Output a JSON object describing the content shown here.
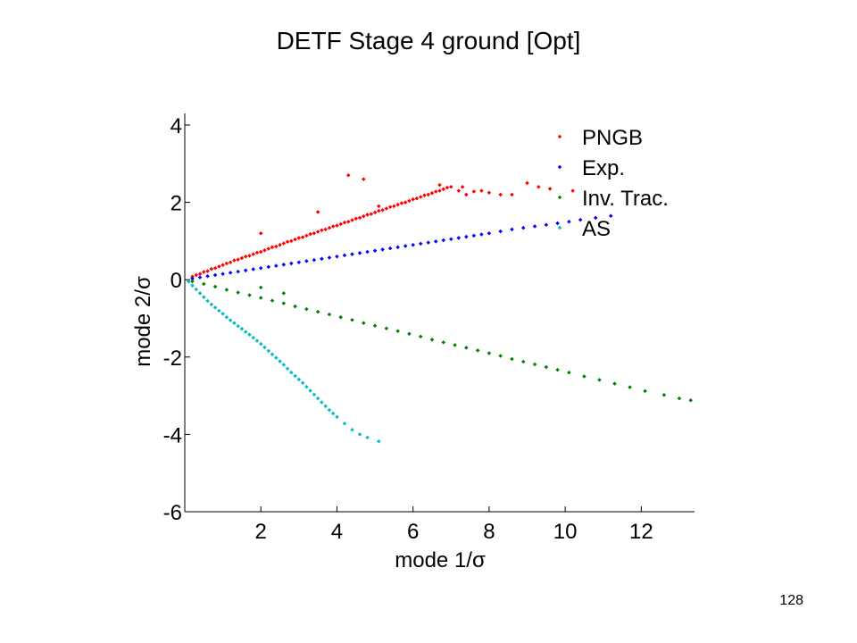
{
  "slide": {
    "title": "DETF Stage 4 ground [Opt]",
    "page_number": "128"
  },
  "chart_data": {
    "type": "scatter",
    "title": "",
    "xlabel": "mode 1/σ",
    "ylabel": "mode 2/σ",
    "xlim": [
      0,
      13.4
    ],
    "ylim": [
      -6,
      4.3
    ],
    "xticks": [
      2,
      4,
      6,
      8,
      10,
      12
    ],
    "yticks": [
      -6,
      -4,
      -2,
      0,
      2,
      4
    ],
    "grid": false,
    "legend_position": "top-right",
    "series": [
      {
        "name": "PNGB",
        "color": "#ff0000",
        "x": [
          0.2,
          0.3,
          0.4,
          0.5,
          0.6,
          0.7,
          0.8,
          0.9,
          1.0,
          1.1,
          1.2,
          1.3,
          1.4,
          1.5,
          1.6,
          1.7,
          1.8,
          1.9,
          2.0,
          2.1,
          2.2,
          2.3,
          2.4,
          2.5,
          2.6,
          2.7,
          2.8,
          2.9,
          3.0,
          3.1,
          3.2,
          3.3,
          3.4,
          3.5,
          3.6,
          3.7,
          3.8,
          3.9,
          4.0,
          4.1,
          4.2,
          4.3,
          4.4,
          4.5,
          4.6,
          4.7,
          4.8,
          4.9,
          5.0,
          5.1,
          5.2,
          5.3,
          5.4,
          5.5,
          5.6,
          5.7,
          5.8,
          5.9,
          6.0,
          6.1,
          6.2,
          6.3,
          6.4,
          6.5,
          6.6,
          6.7,
          6.8,
          6.9,
          7.0,
          7.2,
          7.4,
          7.6,
          7.8,
          8.0,
          8.3,
          8.6,
          9.0,
          9.3,
          9.6,
          10.2,
          4.3,
          4.7,
          3.5,
          2.0,
          5.1,
          6.7,
          7.3
        ],
        "y": [
          0.08,
          0.12,
          0.15,
          0.2,
          0.22,
          0.28,
          0.3,
          0.34,
          0.38,
          0.42,
          0.45,
          0.5,
          0.52,
          0.56,
          0.6,
          0.62,
          0.66,
          0.7,
          0.72,
          0.76,
          0.8,
          0.84,
          0.86,
          0.9,
          0.94,
          0.98,
          1.0,
          1.04,
          1.08,
          1.1,
          1.14,
          1.18,
          1.2,
          1.24,
          1.28,
          1.3,
          1.34,
          1.38,
          1.4,
          1.44,
          1.48,
          1.5,
          1.54,
          1.58,
          1.6,
          1.64,
          1.68,
          1.7,
          1.74,
          1.78,
          1.8,
          1.84,
          1.88,
          1.9,
          1.94,
          1.98,
          2.0,
          2.04,
          2.08,
          2.1,
          2.14,
          2.18,
          2.2,
          2.24,
          2.28,
          2.3,
          2.34,
          2.38,
          2.4,
          2.3,
          2.2,
          2.28,
          2.3,
          2.25,
          2.2,
          2.2,
          2.5,
          2.4,
          2.35,
          2.3,
          2.7,
          2.6,
          1.75,
          1.2,
          1.9,
          2.45,
          2.4
        ]
      },
      {
        "name": "Exp.",
        "color": "#0000ff",
        "x": [
          0.2,
          0.4,
          0.6,
          0.8,
          1.0,
          1.2,
          1.4,
          1.6,
          1.8,
          2.0,
          2.2,
          2.4,
          2.6,
          2.8,
          3.0,
          3.2,
          3.4,
          3.6,
          3.8,
          4.0,
          4.2,
          4.4,
          4.6,
          4.8,
          5.0,
          5.2,
          5.4,
          5.6,
          5.8,
          6.0,
          6.2,
          6.4,
          6.6,
          6.8,
          7.0,
          7.2,
          7.4,
          7.6,
          7.8,
          8.0,
          8.3,
          8.6,
          8.9,
          9.2,
          9.5,
          9.8,
          10.1,
          10.4,
          10.8,
          11.2
        ],
        "y": [
          0.03,
          0.06,
          0.09,
          0.12,
          0.15,
          0.18,
          0.21,
          0.24,
          0.27,
          0.3,
          0.33,
          0.36,
          0.39,
          0.42,
          0.45,
          0.48,
          0.51,
          0.54,
          0.57,
          0.6,
          0.63,
          0.66,
          0.69,
          0.72,
          0.75,
          0.78,
          0.81,
          0.84,
          0.87,
          0.9,
          0.93,
          0.96,
          0.99,
          1.02,
          1.05,
          1.08,
          1.11,
          1.14,
          1.17,
          1.2,
          1.25,
          1.3,
          1.34,
          1.38,
          1.42,
          1.46,
          1.5,
          1.55,
          1.6,
          1.65
        ]
      },
      {
        "name": "Inv. Trac.",
        "color": "#008000",
        "x": [
          0.2,
          0.5,
          0.8,
          1.1,
          1.4,
          1.7,
          2.0,
          2.3,
          2.6,
          2.9,
          3.2,
          3.5,
          3.8,
          4.1,
          4.4,
          4.7,
          5.0,
          5.3,
          5.6,
          5.9,
          6.2,
          6.5,
          6.8,
          7.1,
          7.4,
          7.7,
          8.0,
          8.3,
          8.6,
          8.9,
          9.2,
          9.5,
          9.8,
          10.1,
          10.5,
          10.9,
          11.3,
          11.7,
          12.1,
          12.6,
          13.0,
          13.3,
          2.0,
          2.6
        ],
        "y": [
          -0.04,
          -0.11,
          -0.18,
          -0.26,
          -0.33,
          -0.4,
          -0.47,
          -0.54,
          -0.61,
          -0.69,
          -0.76,
          -0.83,
          -0.9,
          -0.97,
          -1.04,
          -1.12,
          -1.19,
          -1.26,
          -1.33,
          -1.4,
          -1.47,
          -1.55,
          -1.62,
          -1.69,
          -1.76,
          -1.83,
          -1.9,
          -1.97,
          -2.05,
          -2.12,
          -2.19,
          -2.26,
          -2.33,
          -2.4,
          -2.5,
          -2.59,
          -2.69,
          -2.78,
          -2.88,
          -2.98,
          -3.07,
          -3.12,
          -0.2,
          -0.35
        ]
      },
      {
        "name": "AS",
        "color": "#00bfbf",
        "x": [
          0.1,
          0.2,
          0.3,
          0.4,
          0.5,
          0.6,
          0.7,
          0.8,
          0.9,
          1.0,
          1.1,
          1.2,
          1.3,
          1.4,
          1.5,
          1.6,
          1.7,
          1.8,
          1.9,
          2.0,
          2.1,
          2.2,
          2.3,
          2.4,
          2.5,
          2.6,
          2.7,
          2.8,
          2.9,
          3.0,
          3.1,
          3.2,
          3.3,
          3.4,
          3.5,
          3.6,
          3.7,
          3.8,
          3.9,
          4.0,
          4.2,
          4.4,
          4.6,
          4.8,
          5.1
        ],
        "y": [
          -0.05,
          -0.15,
          -0.25,
          -0.35,
          -0.45,
          -0.55,
          -0.64,
          -0.72,
          -0.8,
          -0.88,
          -0.97,
          -1.05,
          -1.12,
          -1.2,
          -1.27,
          -1.35,
          -1.42,
          -1.5,
          -1.58,
          -1.66,
          -1.75,
          -1.84,
          -1.93,
          -2.02,
          -2.11,
          -2.2,
          -2.3,
          -2.4,
          -2.49,
          -2.58,
          -2.67,
          -2.77,
          -2.87,
          -2.97,
          -3.07,
          -3.17,
          -3.27,
          -3.37,
          -3.46,
          -3.55,
          -3.72,
          -3.88,
          -4.0,
          -4.08,
          -4.18
        ]
      }
    ]
  }
}
